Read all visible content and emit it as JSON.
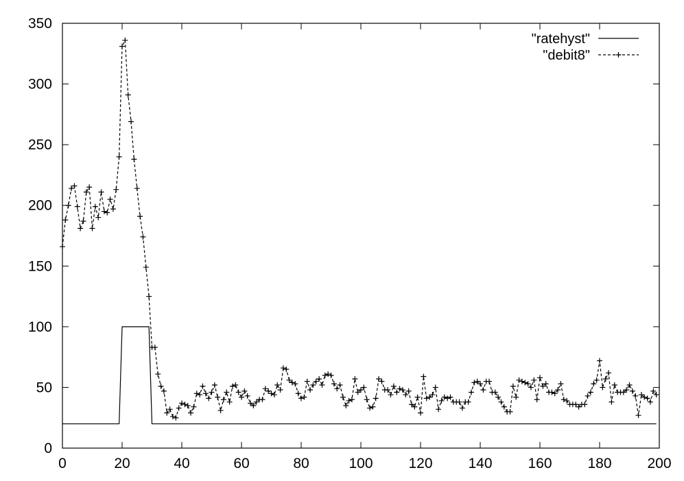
{
  "chart_data": {
    "type": "line",
    "title": "",
    "xlabel": "",
    "ylabel": "",
    "xlim": [
      0,
      200
    ],
    "ylim": [
      0,
      350
    ],
    "xticks": [
      0,
      20,
      40,
      60,
      80,
      100,
      120,
      140,
      160,
      180,
      200
    ],
    "yticks": [
      0,
      50,
      100,
      150,
      200,
      250,
      300,
      350
    ],
    "legend_position": "top-right",
    "grid": false,
    "series": [
      {
        "name": "\"ratehyst\"",
        "style": "solid",
        "color": "#000000",
        "x": [
          0,
          19,
          20,
          29,
          30,
          199
        ],
        "y": [
          20,
          20,
          100,
          100,
          20,
          20
        ]
      },
      {
        "name": "\"debit8\"",
        "style": "dashed",
        "marker": "plus",
        "color": "#000000",
        "x": [
          0,
          1,
          2,
          3,
          4,
          5,
          6,
          7,
          8,
          9,
          10,
          11,
          12,
          13,
          14,
          15,
          16,
          17,
          18,
          19,
          20,
          21,
          22,
          23,
          24,
          25,
          26,
          27,
          28,
          29,
          30,
          31,
          32,
          33,
          34,
          35,
          36,
          37,
          38,
          39,
          40,
          41,
          42,
          43,
          44,
          45,
          46,
          47,
          48,
          49,
          50,
          51,
          52,
          53,
          54,
          55,
          56,
          57,
          58,
          59,
          60,
          61,
          62,
          63,
          64,
          65,
          66,
          67,
          68,
          69,
          70,
          71,
          72,
          73,
          74,
          75,
          76,
          77,
          78,
          79,
          80,
          81,
          82,
          83,
          84,
          85,
          86,
          87,
          88,
          89,
          90,
          91,
          92,
          93,
          94,
          95,
          96,
          97,
          98,
          99,
          100,
          101,
          102,
          103,
          104,
          105,
          106,
          107,
          108,
          109,
          110,
          111,
          112,
          113,
          114,
          115,
          116,
          117,
          118,
          119,
          120,
          121,
          122,
          123,
          124,
          125,
          126,
          127,
          128,
          129,
          130,
          131,
          132,
          133,
          134,
          135,
          136,
          137,
          138,
          139,
          140,
          141,
          142,
          143,
          144,
          145,
          146,
          147,
          148,
          149,
          150,
          151,
          152,
          153,
          154,
          155,
          156,
          157,
          158,
          159,
          160,
          161,
          162,
          163,
          164,
          165,
          166,
          167,
          168,
          169,
          170,
          171,
          172,
          173,
          174,
          175,
          176,
          177,
          178,
          179,
          180,
          181,
          182,
          183,
          184,
          185,
          186,
          187,
          188,
          189,
          190,
          191,
          192,
          193,
          194,
          195,
          196,
          197,
          198,
          199
        ],
        "y": [
          166,
          188,
          200,
          214,
          216,
          199,
          181,
          187,
          211,
          215,
          181,
          199,
          190,
          211,
          195,
          194,
          205,
          197,
          213,
          240,
          331,
          336,
          291,
          269,
          238,
          214,
          191,
          174,
          149,
          125,
          83,
          83,
          61,
          51,
          47,
          29,
          32,
          26,
          25,
          33,
          37,
          36,
          35,
          29,
          34,
          45,
          44,
          51,
          45,
          41,
          46,
          52,
          42,
          31,
          40,
          46,
          38,
          51,
          52,
          46,
          42,
          47,
          43,
          37,
          35,
          38,
          40,
          40,
          49,
          47,
          45,
          44,
          52,
          48,
          66,
          65,
          56,
          54,
          53,
          45,
          41,
          42,
          55,
          48,
          52,
          55,
          57,
          52,
          60,
          61,
          60,
          53,
          49,
          52,
          42,
          35,
          39,
          40,
          57,
          46,
          48,
          50,
          40,
          33,
          34,
          41,
          57,
          55,
          48,
          48,
          44,
          51,
          46,
          49,
          48,
          44,
          47,
          36,
          34,
          42,
          29,
          59,
          41,
          42,
          44,
          50,
          32,
          39,
          42,
          41,
          42,
          38,
          38,
          38,
          33,
          38,
          38,
          46,
          54,
          55,
          53,
          48,
          55,
          55,
          46,
          46,
          42,
          38,
          34,
          30,
          30,
          51,
          42,
          56,
          55,
          54,
          53,
          50,
          56,
          40,
          58,
          51,
          53,
          46,
          46,
          45,
          48,
          53,
          40,
          39,
          36,
          36,
          36,
          34,
          36,
          36,
          43,
          46,
          53,
          56,
          72,
          50,
          57,
          62,
          38,
          52,
          46,
          46,
          46,
          48,
          52,
          47,
          43,
          27,
          44,
          42,
          41,
          38,
          47,
          44
        ]
      }
    ]
  }
}
